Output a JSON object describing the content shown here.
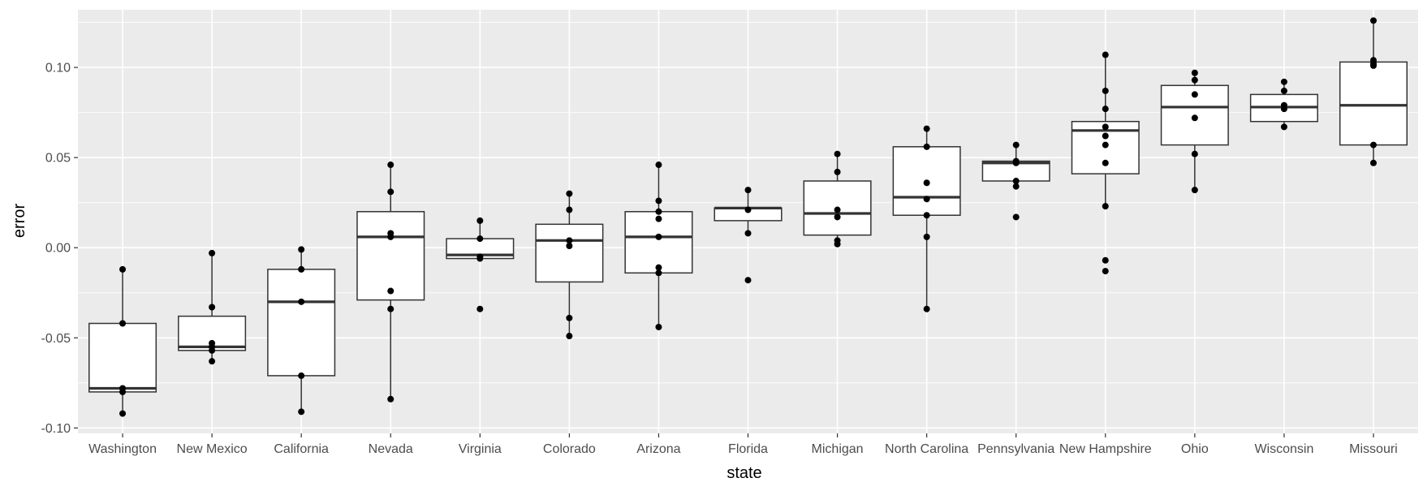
{
  "chart_data": {
    "type": "boxplot",
    "xlabel": "state",
    "ylabel": "error",
    "ylim": [
      -0.103,
      0.132
    ],
    "yticks": [
      -0.1,
      -0.05,
      0.0,
      0.05,
      0.1
    ],
    "ytick_labels": [
      "-0.10",
      "-0.05",
      "0.00",
      "0.05",
      "0.10"
    ],
    "grid": true,
    "panel_background": "#ebebeb",
    "grid_color": "#ffffff",
    "point_color": "#000000",
    "box_fill": "#ffffff",
    "categories": [
      "Washington",
      "New Mexico",
      "California",
      "Nevada",
      "Virginia",
      "Colorado",
      "Arizona",
      "Florida",
      "Michigan",
      "North Carolina",
      "Pennsylvania",
      "New Hampshire",
      "Ohio",
      "Wisconsin",
      "Missouri"
    ],
    "boxes": [
      {
        "state": "Washington",
        "lower": -0.092,
        "q1": -0.08,
        "median": -0.078,
        "q3": -0.042,
        "upper": -0.012
      },
      {
        "state": "New Mexico",
        "lower": -0.063,
        "q1": -0.057,
        "median": -0.055,
        "q3": -0.038,
        "upper": -0.003
      },
      {
        "state": "California",
        "lower": -0.091,
        "q1": -0.071,
        "median": -0.03,
        "q3": -0.012,
        "upper": -0.001
      },
      {
        "state": "Nevada",
        "lower": -0.084,
        "q1": -0.029,
        "median": 0.006,
        "q3": 0.02,
        "upper": 0.046
      },
      {
        "state": "Virginia",
        "lower": -0.006,
        "q1": -0.006,
        "median": -0.004,
        "q3": 0.005,
        "upper": 0.015
      },
      {
        "state": "Colorado",
        "lower": -0.049,
        "q1": -0.019,
        "median": 0.004,
        "q3": 0.013,
        "upper": 0.03
      },
      {
        "state": "Arizona",
        "lower": -0.044,
        "q1": -0.014,
        "median": 0.006,
        "q3": 0.02,
        "upper": 0.046
      },
      {
        "state": "Florida",
        "lower": 0.008,
        "q1": 0.015,
        "median": 0.022,
        "q3": 0.022,
        "upper": 0.032
      },
      {
        "state": "Michigan",
        "lower": 0.002,
        "q1": 0.007,
        "median": 0.019,
        "q3": 0.037,
        "upper": 0.052
      },
      {
        "state": "North Carolina",
        "lower": -0.034,
        "q1": 0.018,
        "median": 0.028,
        "q3": 0.056,
        "upper": 0.066
      },
      {
        "state": "Pennsylvania",
        "lower": 0.034,
        "q1": 0.037,
        "median": 0.047,
        "q3": 0.048,
        "upper": 0.057
      },
      {
        "state": "New Hampshire",
        "lower": 0.023,
        "q1": 0.041,
        "median": 0.065,
        "q3": 0.07,
        "upper": 0.107
      },
      {
        "state": "Ohio",
        "lower": 0.032,
        "q1": 0.057,
        "median": 0.078,
        "q3": 0.09,
        "upper": 0.097
      },
      {
        "state": "Wisconsin",
        "lower": 0.067,
        "q1": 0.07,
        "median": 0.078,
        "q3": 0.085,
        "upper": 0.092
      },
      {
        "state": "Missouri",
        "lower": 0.047,
        "q1": 0.057,
        "median": 0.079,
        "q3": 0.103,
        "upper": 0.126
      }
    ],
    "points": [
      {
        "state": "Washington",
        "values": [
          -0.012,
          -0.042,
          -0.078,
          -0.08,
          -0.092
        ]
      },
      {
        "state": "New Mexico",
        "values": [
          -0.003,
          -0.033,
          -0.053,
          -0.055,
          -0.057,
          -0.063
        ]
      },
      {
        "state": "California",
        "values": [
          -0.001,
          -0.012,
          -0.03,
          -0.071,
          -0.091
        ]
      },
      {
        "state": "Nevada",
        "values": [
          0.046,
          0.031,
          0.008,
          0.006,
          -0.024,
          -0.034,
          -0.084
        ]
      },
      {
        "state": "Virginia",
        "values": [
          0.015,
          0.005,
          -0.005,
          -0.006,
          -0.034
        ]
      },
      {
        "state": "Colorado",
        "values": [
          0.03,
          0.021,
          0.004,
          0.001,
          -0.039,
          -0.049
        ]
      },
      {
        "state": "Arizona",
        "values": [
          0.046,
          0.026,
          0.02,
          0.016,
          0.006,
          -0.011,
          -0.014,
          -0.044
        ]
      },
      {
        "state": "Florida",
        "values": [
          0.032,
          0.021,
          0.008,
          -0.018
        ]
      },
      {
        "state": "Michigan",
        "values": [
          0.052,
          0.042,
          0.021,
          0.017,
          0.004,
          0.002
        ]
      },
      {
        "state": "North Carolina",
        "values": [
          0.066,
          0.056,
          0.036,
          0.027,
          0.018,
          0.006,
          -0.034
        ]
      },
      {
        "state": "Pennsylvania",
        "values": [
          0.057,
          0.048,
          0.047,
          0.037,
          0.034,
          0.017
        ]
      },
      {
        "state": "New Hampshire",
        "values": [
          0.107,
          0.087,
          0.077,
          0.067,
          0.062,
          0.057,
          0.047,
          0.023,
          -0.007,
          -0.013
        ]
      },
      {
        "state": "Ohio",
        "values": [
          0.097,
          0.093,
          0.085,
          0.072,
          0.052,
          0.032
        ]
      },
      {
        "state": "Wisconsin",
        "values": [
          0.092,
          0.087,
          0.079,
          0.077,
          0.067
        ]
      },
      {
        "state": "Missouri",
        "values": [
          0.126,
          0.104,
          0.102,
          0.101,
          0.057,
          0.047
        ]
      }
    ]
  }
}
